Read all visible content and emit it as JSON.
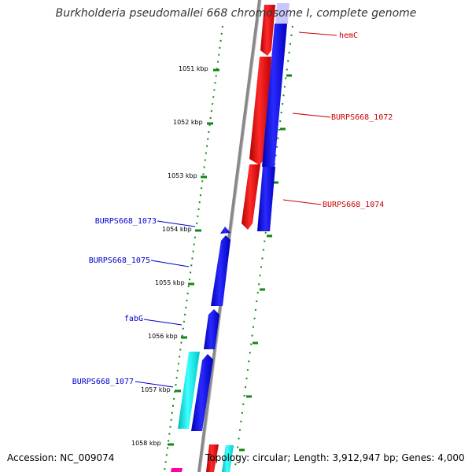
{
  "title": "Burkholderia pseudomallei 668 chromosome I, complete genome",
  "footer": {
    "accession": "Accession: NC_009074",
    "summary": "Topology: circular; Length: 3,912,947 bp; Genes: 4,000"
  },
  "colors": {
    "forward_gene": "#ff0000",
    "reverse_gene": "#0000ff",
    "cyan_gene": "#00ffff",
    "pink_gene": "#ff00aa",
    "light_blue_gene": "#c8c8ff",
    "forward_label": "#cc0000",
    "reverse_label": "#0000cc",
    "tick": "#118811",
    "backbone": "#888888"
  },
  "ticks": [
    {
      "label": "1051 kbp"
    },
    {
      "label": "1052 kbp"
    },
    {
      "label": "1053 kbp"
    },
    {
      "label": "1054 kbp"
    },
    {
      "label": "1055 kbp"
    },
    {
      "label": "1056 kbp"
    },
    {
      "label": "1057 kbp"
    },
    {
      "label": "1058 kbp"
    }
  ],
  "gene_labels": {
    "hemC": "hemC",
    "burps668_1072": "BURPS668_1072",
    "burps668_1074": "BURPS668_1074",
    "burps668_1073": "BURPS668_1073",
    "burps668_1075": "BURPS668_1075",
    "fabG": "fabG",
    "burps668_1077": "BURPS668_1077"
  }
}
